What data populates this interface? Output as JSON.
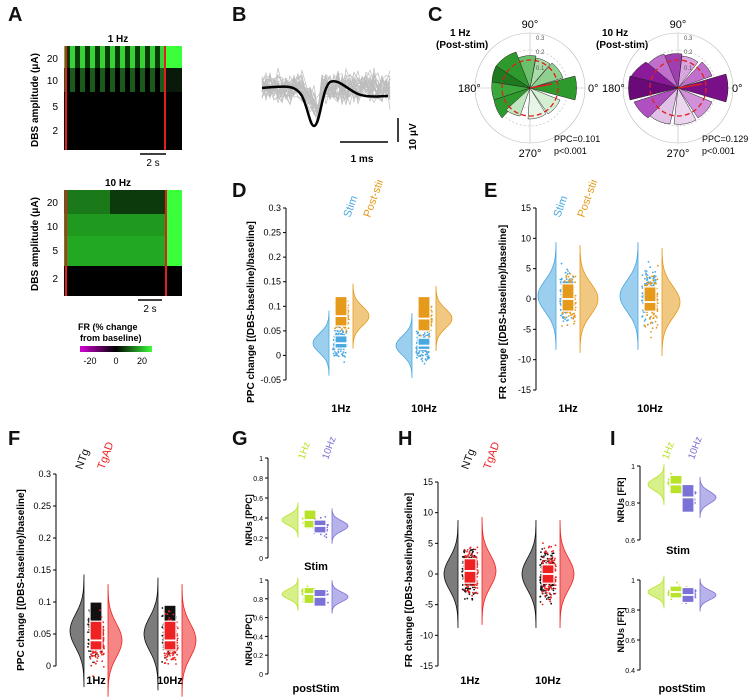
{
  "panels": {
    "A": {
      "letter": "A",
      "top": {
        "title": "1 Hz",
        "ylabel": "DBS amplitude (μA)",
        "yticks": [
          "20",
          "10",
          "5",
          "2"
        ],
        "scalebar": "2 s"
      },
      "bottom": {
        "title": "10 Hz",
        "ylabel": "DBS amplitude (μA)",
        "yticks": [
          "20",
          "10",
          "5",
          "2"
        ],
        "scalebar": "2 s"
      },
      "colorbar": {
        "title_line1": "FR (% change",
        "title_line2": "from baseline)",
        "ticks": [
          "-20",
          "0",
          "20"
        ],
        "colors": {
          "low": "#d400d4",
          "mid": "#000000",
          "high": "#3cff3c"
        }
      }
    },
    "B": {
      "letter": "B",
      "scale_time": "1 ms",
      "scale_volt": "10 μV"
    },
    "C": {
      "letter": "C",
      "left": {
        "title_line1": "1 Hz",
        "title_line2": "(Post-stim)",
        "angles": [
          "90°",
          "180°",
          "0°",
          "270°"
        ],
        "rings": [
          "0.3",
          "0.2",
          "0.1"
        ],
        "ppc": "PPC=0.101",
        "p": "p<0.001",
        "color": "#3a9a3a"
      },
      "right": {
        "title_line1": "10 Hz",
        "title_line2": "(Post-stim)",
        "angles": [
          "90°",
          "180°",
          "0°",
          "270°"
        ],
        "rings": [
          "0.3",
          "0.2",
          "0.1"
        ],
        "ppc": "PPC=0.129",
        "p": "p<0.001",
        "color": "#8a1a9a"
      }
    },
    "D": {
      "letter": "D",
      "ylabel": "PPC change [(DBS-baseline)/baseline]",
      "yticks": [
        "0.3",
        "0.25",
        "0.2",
        "0.15",
        "0.1",
        "0.05",
        "0",
        "-0.05"
      ],
      "groups": [
        "1Hz",
        "10Hz"
      ],
      "legend": [
        "Stim",
        "Post-stim"
      ]
    },
    "E": {
      "letter": "E",
      "ylabel": "FR change [(DBS-baseline)/baseline]",
      "yticks": [
        "15",
        "10",
        "5",
        "0",
        "-5",
        "-10",
        "-15"
      ],
      "groups": [
        "1Hz",
        "10Hz"
      ],
      "legend": [
        "Stim",
        "Post-stim"
      ]
    },
    "F": {
      "letter": "F",
      "ylabel": "PPC change [(DBS-baseline)/baseline]",
      "yticks": [
        "0.3",
        "0.25",
        "0.2",
        "0.15",
        "0.1",
        "0.05",
        "0"
      ],
      "groups": [
        "1Hz",
        "10Hz"
      ],
      "legend": [
        "NTg",
        "TgAD"
      ]
    },
    "G": {
      "letter": "G",
      "ylabel_top": "NRUs [PPC]",
      "ylabel_bottom": "NRUs [PPC]",
      "yticks": [
        "1",
        "0.8",
        "0.6",
        "0.4",
        "0.2",
        "0"
      ],
      "label_top": "Stim",
      "label_bottom": "postStim",
      "legend": [
        "1Hz",
        "10Hz"
      ]
    },
    "H": {
      "letter": "H",
      "ylabel": "FR change [(DBS-baseline)/baseline]",
      "yticks": [
        "15",
        "10",
        "5",
        "0",
        "-5",
        "-10",
        "-15"
      ],
      "groups": [
        "1Hz",
        "10Hz"
      ],
      "legend": [
        "NTg",
        "TgAD"
      ]
    },
    "I": {
      "letter": "I",
      "ylabel_top": "NRUs [FR]",
      "ylabel_bottom": "NRUs [FR]",
      "yticks_top": [
        "1",
        "0.8",
        "0.6"
      ],
      "yticks_bottom": [
        "1",
        "0.8",
        "0.6",
        "0.4"
      ],
      "label_top": "Stim",
      "label_bottom": "postStim",
      "legend": [
        "1Hz",
        "10Hz"
      ]
    }
  },
  "colors": {
    "stim": "#4aa8e0",
    "post": "#e59a1c",
    "ntg": "#111111",
    "tgad": "#ee2222",
    "hz1": "#b8e32a",
    "hz10": "#7b72d8"
  },
  "chart_data": [
    {
      "panel": "D",
      "type": "violin",
      "ylim": [
        -0.05,
        0.3
      ],
      "ylabel": "PPC change [(DBS-baseline)/baseline]",
      "categories": [
        "1Hz",
        "10Hz"
      ],
      "series": [
        {
          "name": "Stim",
          "median": [
            0.025,
            0.02
          ],
          "q1": [
            0.015,
            0.012
          ],
          "q3": [
            0.04,
            0.035
          ]
        },
        {
          "name": "Post-stim",
          "median": [
            0.08,
            0.075
          ],
          "q1": [
            0.06,
            0.05
          ],
          "q3": [
            0.12,
            0.12
          ]
        }
      ]
    },
    {
      "panel": "E",
      "type": "violin",
      "ylim": [
        -15,
        15
      ],
      "ylabel": "FR change [(DBS-baseline)/baseline]",
      "categories": [
        "1Hz",
        "10Hz"
      ],
      "series": [
        {
          "name": "Stim",
          "median": [
            0.5,
            0.5
          ],
          "q1": [
            -1.5,
            -1
          ],
          "q3": [
            3,
            2
          ]
        },
        {
          "name": "Post-stim",
          "median": [
            0,
            -0.5
          ],
          "q1": [
            -2,
            -2
          ],
          "q3": [
            2.5,
            2
          ]
        }
      ]
    },
    {
      "panel": "F",
      "type": "violin",
      "ylim": [
        0,
        0.3
      ],
      "ylabel": "PPC change [(DBS-baseline)/baseline]",
      "categories": [
        "1Hz",
        "10Hz"
      ],
      "series": [
        {
          "name": "NTg",
          "median": [
            0.055,
            0.05
          ],
          "q1": [
            0.03,
            0.03
          ],
          "q3": [
            0.1,
            0.095
          ]
        },
        {
          "name": "TgAD",
          "median": [
            0.04,
            0.04
          ],
          "q1": [
            0.025,
            0.025
          ],
          "q3": [
            0.07,
            0.07
          ]
        }
      ]
    },
    {
      "panel": "G",
      "type": "violin",
      "ylim": [
        0,
        1
      ],
      "ylabel": "NRUs [PPC]",
      "categories": [
        "Stim",
        "postStim"
      ],
      "series": [
        {
          "name": "1Hz",
          "median": [
            0.38,
            0.85
          ],
          "q1": [
            0.3,
            0.75
          ],
          "q3": [
            0.48,
            0.92
          ]
        },
        {
          "name": "10Hz",
          "median": [
            0.32,
            0.82
          ],
          "q1": [
            0.25,
            0.72
          ],
          "q3": [
            0.38,
            0.9
          ]
        }
      ]
    },
    {
      "panel": "H",
      "type": "violin",
      "ylim": [
        -15,
        15
      ],
      "ylabel": "FR change [(DBS-baseline)/baseline]",
      "categories": [
        "1Hz",
        "10Hz"
      ],
      "series": [
        {
          "name": "NTg",
          "median": [
            0,
            0
          ],
          "q1": [
            -2,
            -1.5
          ],
          "q3": [
            2,
            1.5
          ]
        },
        {
          "name": "TgAD",
          "median": [
            0.5,
            0
          ],
          "q1": [
            -1.5,
            -1.5
          ],
          "q3": [
            2.5,
            1.5
          ]
        }
      ]
    },
    {
      "panel": "I",
      "type": "violin",
      "ylim": [
        0.4,
        1
      ],
      "ylabel": "NRUs [FR]",
      "categories": [
        "Stim",
        "postStim"
      ],
      "series": [
        {
          "name": "1Hz",
          "median": [
            0.9,
            0.92
          ],
          "q1": [
            0.85,
            0.88
          ],
          "q3": [
            0.95,
            0.96
          ]
        },
        {
          "name": "10Hz",
          "median": [
            0.83,
            0.9
          ],
          "q1": [
            0.75,
            0.85
          ],
          "q3": [
            0.9,
            0.95
          ]
        }
      ]
    }
  ]
}
